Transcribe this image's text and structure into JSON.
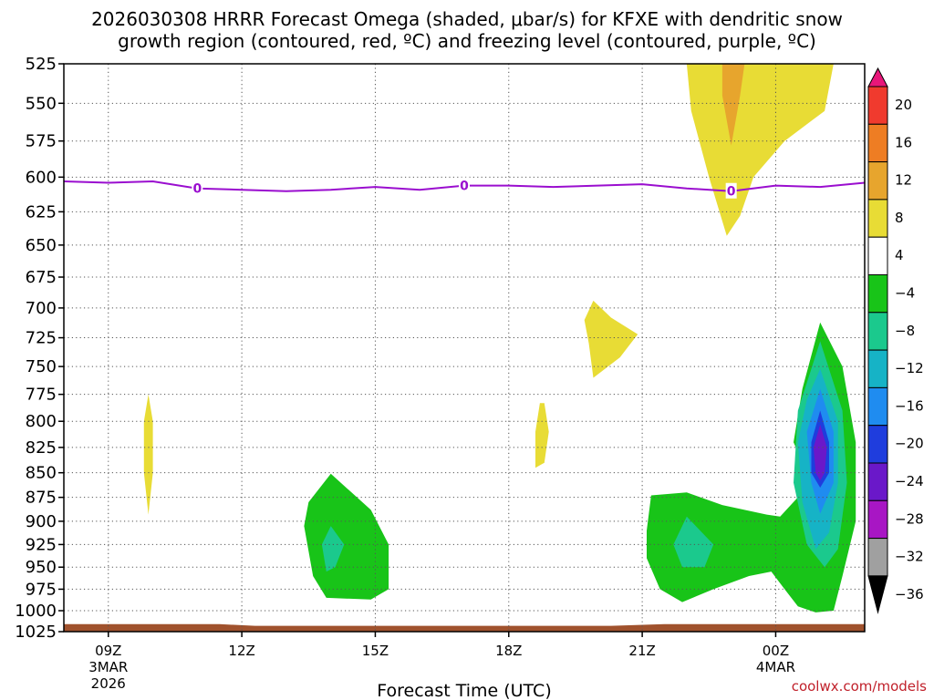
{
  "title": {
    "line1": "2026030308 HRRR Forecast Omega (shaded, μbar/s) for KFXE with dendritic snow",
    "line2": "growth region (contoured, red, ºC) and freezing level (contoured, purple, ºC)"
  },
  "credit": "coolwx.com/models",
  "chart_data": {
    "type": "heatmap",
    "title": "2026030308 HRRR Forecast Omega (shaded, μbar/s) for KFXE with dendritic snow growth region (contoured, red, ºC) and freezing level (contoured, purple, ºC)",
    "xlabel": "Forecast Time (UTC)",
    "ylabel": "",
    "x_unit": "hours from 2026-03-03 08Z",
    "xlim": [
      0,
      18
    ],
    "ylim": [
      525,
      1025
    ],
    "y_inverted": true,
    "y_ticks": [
      525,
      550,
      575,
      600,
      625,
      650,
      675,
      700,
      725,
      750,
      775,
      800,
      825,
      850,
      875,
      900,
      925,
      950,
      975,
      1000,
      1025
    ],
    "x_ticks": [
      {
        "x": 1,
        "label": "09Z",
        "sub1": "3MAR",
        "sub2": "2026"
      },
      {
        "x": 4,
        "label": "12Z",
        "sub1": "",
        "sub2": ""
      },
      {
        "x": 7,
        "label": "15Z",
        "sub1": "",
        "sub2": ""
      },
      {
        "x": 10,
        "label": "18Z",
        "sub1": "",
        "sub2": ""
      },
      {
        "x": 13,
        "label": "21Z",
        "sub1": "",
        "sub2": ""
      },
      {
        "x": 16,
        "label": "00Z",
        "sub1": "4MAR",
        "sub2": ""
      }
    ],
    "grid": true,
    "colorbar": {
      "unit": "μbar/s",
      "levels": [
        "20",
        "16",
        "12",
        "8",
        "4",
        "−4",
        "−8",
        "−12",
        "−16",
        "−20",
        "−24",
        "−28",
        "−32",
        "−36"
      ],
      "colors": [
        "#e8177a",
        "#f03a2e",
        "#ee7d23",
        "#e7a52d",
        "#e8dc35",
        "#ffffff",
        "#18c418",
        "#1bc98d",
        "#16b3c6",
        "#1f8cf0",
        "#1f3ddd",
        "#6a18c9",
        "#a816c4",
        "#a0a0a0",
        "#000000"
      ]
    },
    "freezing_level": {
      "color": "#9a0ecf",
      "label": "0",
      "x": [
        0,
        1,
        2,
        3,
        4,
        5,
        6,
        7,
        8,
        9,
        10,
        11,
        12,
        13,
        14,
        15,
        16,
        17,
        18
      ],
      "pressure": [
        603,
        604,
        603,
        608,
        609,
        610,
        609,
        607,
        609,
        606,
        606,
        607,
        606,
        605,
        608,
        610,
        606,
        607,
        604
      ]
    },
    "omega_regions": [
      {
        "value": "4 to 8",
        "color": "#e8dc35",
        "points": [
          [
            14.0,
            525
          ],
          [
            17.3,
            525
          ],
          [
            17.1,
            555
          ],
          [
            16.2,
            575
          ],
          [
            15.5,
            600
          ],
          [
            15.2,
            628
          ],
          [
            14.9,
            643
          ],
          [
            14.5,
            600
          ],
          [
            14.1,
            555
          ]
        ]
      },
      {
        "value": "8 to 12",
        "color": "#e7a52d",
        "points": [
          [
            14.8,
            525
          ],
          [
            15.3,
            525
          ],
          [
            15.2,
            545
          ],
          [
            15.0,
            578
          ],
          [
            14.8,
            545
          ]
        ]
      },
      {
        "value": "4 to 8",
        "color": "#e8dc35",
        "points": [
          [
            11.9,
            694
          ],
          [
            12.3,
            708
          ],
          [
            12.9,
            722
          ],
          [
            12.5,
            742
          ],
          [
            11.9,
            760
          ],
          [
            11.8,
            730
          ],
          [
            11.7,
            710
          ]
        ]
      },
      {
        "value": "4 to 8",
        "color": "#e8dc35",
        "points": [
          [
            1.9,
            775
          ],
          [
            2.0,
            800
          ],
          [
            2.0,
            850
          ],
          [
            1.9,
            893
          ],
          [
            1.8,
            850
          ],
          [
            1.8,
            800
          ]
        ]
      },
      {
        "value": "4 to 8",
        "color": "#e8dc35",
        "points": [
          [
            10.8,
            783
          ],
          [
            10.9,
            810
          ],
          [
            10.8,
            840
          ],
          [
            10.6,
            845
          ],
          [
            10.6,
            810
          ],
          [
            10.7,
            783
          ]
        ]
      },
      {
        "value": "-8 to -4",
        "color": "#18c418",
        "points": [
          [
            6.0,
            851
          ],
          [
            6.9,
            888
          ],
          [
            7.3,
            925
          ],
          [
            7.3,
            975
          ],
          [
            6.9,
            987
          ],
          [
            5.9,
            985
          ],
          [
            5.6,
            960
          ],
          [
            5.4,
            905
          ],
          [
            5.5,
            880
          ]
        ]
      },
      {
        "value": "-12 to -8",
        "color": "#1bc98d",
        "points": [
          [
            6.0,
            905
          ],
          [
            6.3,
            925
          ],
          [
            6.1,
            950
          ],
          [
            5.9,
            955
          ],
          [
            5.8,
            925
          ]
        ]
      },
      {
        "value": "-8 to -4",
        "color": "#18c418",
        "points": [
          [
            13.2,
            873
          ],
          [
            14.0,
            870
          ],
          [
            14.8,
            883
          ],
          [
            15.8,
            893
          ],
          [
            16.1,
            895
          ],
          [
            16.8,
            860
          ],
          [
            16.4,
            820
          ],
          [
            16.6,
            770
          ],
          [
            17.0,
            712
          ],
          [
            17.5,
            750
          ],
          [
            17.8,
            820
          ],
          [
            17.8,
            900
          ],
          [
            17.5,
            960
          ],
          [
            17.3,
            1000
          ],
          [
            16.9,
            1002
          ],
          [
            16.5,
            995
          ],
          [
            16.2,
            975
          ],
          [
            15.9,
            955
          ],
          [
            15.4,
            960
          ],
          [
            14.6,
            975
          ],
          [
            13.9,
            990
          ],
          [
            13.4,
            975
          ],
          [
            13.1,
            940
          ],
          [
            13.1,
            910
          ]
        ]
      },
      {
        "value": "-12 to -8",
        "color": "#1bc98d",
        "points": [
          [
            14.0,
            895
          ],
          [
            14.6,
            925
          ],
          [
            14.4,
            950
          ],
          [
            13.9,
            950
          ],
          [
            13.7,
            925
          ]
        ]
      },
      {
        "value": "-12 to -8",
        "color": "#1bc98d",
        "points": [
          [
            17.0,
            728
          ],
          [
            17.5,
            790
          ],
          [
            17.6,
            860
          ],
          [
            17.4,
            930
          ],
          [
            17.1,
            950
          ],
          [
            16.7,
            925
          ],
          [
            16.4,
            860
          ],
          [
            16.5,
            790
          ]
        ]
      },
      {
        "value": "-16 to -12",
        "color": "#16b3c6",
        "points": [
          [
            17.0,
            752
          ],
          [
            17.4,
            800
          ],
          [
            17.4,
            860
          ],
          [
            17.2,
            912
          ],
          [
            16.9,
            930
          ],
          [
            16.6,
            880
          ],
          [
            16.5,
            820
          ],
          [
            16.7,
            780
          ]
        ]
      },
      {
        "value": "-20 to -16",
        "color": "#1f8cf0",
        "points": [
          [
            17.0,
            770
          ],
          [
            17.3,
            810
          ],
          [
            17.3,
            860
          ],
          [
            17.0,
            892
          ],
          [
            16.8,
            860
          ],
          [
            16.7,
            810
          ]
        ]
      },
      {
        "value": "-24 to -20",
        "color": "#1f3ddd",
        "points": [
          [
            17.0,
            790
          ],
          [
            17.2,
            820
          ],
          [
            17.2,
            850
          ],
          [
            17.0,
            865
          ],
          [
            16.8,
            850
          ],
          [
            16.8,
            820
          ]
        ]
      },
      {
        "value": "-28 to -24",
        "color": "#6a18c9",
        "points": [
          [
            17.0,
            803
          ],
          [
            17.15,
            825
          ],
          [
            17.1,
            850
          ],
          [
            17.0,
            858
          ],
          [
            16.9,
            850
          ],
          [
            16.85,
            825
          ]
        ]
      }
    ],
    "terrain": {
      "color": "#a0522d",
      "x": [
        0,
        3.5,
        4.3,
        12.3,
        13.5,
        15.0,
        18
      ],
      "pressure": [
        1016,
        1016,
        1018,
        1018,
        1016,
        1016,
        1016
      ]
    }
  }
}
